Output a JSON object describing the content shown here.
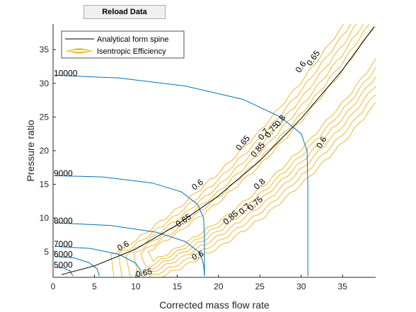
{
  "toolbar": {
    "reload_label": "Reload Data"
  },
  "chart_data": {
    "type": "line",
    "title": "",
    "xlabel": "Corrected mass flow rate",
    "ylabel": "Pressure ratio",
    "xlim": [
      0,
      39
    ],
    "ylim": [
      1.2,
      38.8
    ],
    "xticks": [
      0,
      5,
      10,
      15,
      20,
      25,
      30,
      35
    ],
    "yticks": [
      5,
      10,
      15,
      20,
      25,
      30,
      35
    ],
    "grid": false,
    "legend_position": "top-left",
    "legend": [
      {
        "name": "Analytical form spine",
        "color": "#000000"
      },
      {
        "name": "Isentropic Efficiency",
        "color": "#EDB120"
      }
    ],
    "speed_lines": [
      {
        "label": "5000",
        "color": "#0072BD",
        "points": [
          [
            0.2,
            2.7
          ],
          [
            1.2,
            2.6
          ],
          [
            2.0,
            2.2
          ],
          [
            2.4,
            1.4
          ]
        ]
      },
      {
        "label": "6000",
        "color": "#0072BD",
        "points": [
          [
            0.2,
            4.3
          ],
          [
            2.5,
            4.1
          ],
          [
            4.3,
            3.4
          ],
          [
            5.3,
            2.5
          ],
          [
            5.6,
            1.4
          ]
        ]
      },
      {
        "label": "7000",
        "color": "#0072BD",
        "points": [
          [
            0.2,
            5.8
          ],
          [
            4.5,
            5.5
          ],
          [
            8.0,
            4.6
          ],
          [
            10.0,
            3.3
          ],
          [
            10.6,
            2.2
          ],
          [
            10.7,
            1.4
          ]
        ]
      },
      {
        "label": "8000",
        "color": "#0072BD",
        "points": [
          [
            0.2,
            9.3
          ],
          [
            7.0,
            8.9
          ],
          [
            12.5,
            7.9
          ],
          [
            16.0,
            6.5
          ],
          [
            17.8,
            4.8
          ],
          [
            18.2,
            3.0
          ],
          [
            18.3,
            1.4
          ]
        ]
      },
      {
        "label": "9000",
        "color": "#0072BD",
        "points": [
          [
            0.2,
            16.3
          ],
          [
            6.0,
            16.1
          ],
          [
            12.0,
            15.2
          ],
          [
            15.5,
            13.9
          ],
          [
            17.5,
            12.0
          ],
          [
            18.2,
            10.0
          ],
          [
            18.3,
            7.0
          ],
          [
            18.3,
            1.4
          ]
        ]
      },
      {
        "label": "10000",
        "color": "#0072BD",
        "points": [
          [
            0.2,
            31.2
          ],
          [
            8.0,
            30.8
          ],
          [
            16.0,
            29.6
          ],
          [
            23.0,
            27.6
          ],
          [
            27.5,
            25.0
          ],
          [
            30.0,
            22.5
          ],
          [
            30.7,
            20.0
          ],
          [
            30.8,
            15.0
          ],
          [
            30.8,
            1.4
          ]
        ]
      }
    ],
    "spine": {
      "name": "Analytical form spine",
      "points": [
        [
          1.0,
          1.6
        ],
        [
          5.0,
          2.9
        ],
        [
          10.0,
          5.4
        ],
        [
          15.0,
          9.0
        ],
        [
          20.0,
          13.3
        ],
        [
          25.0,
          18.5
        ],
        [
          30.0,
          24.8
        ],
        [
          35.0,
          32.0
        ],
        [
          38.8,
          38.4
        ]
      ]
    },
    "efficiency_contours": {
      "name": "Isentropic Efficiency",
      "levels": [
        0.6,
        0.65,
        0.7,
        0.75,
        0.8,
        0.85
      ],
      "labels": [
        {
          "text": "0.65",
          "x": 11.0,
          "y": 1.8,
          "angle": -12
        },
        {
          "text": "0.6",
          "x": 8.5,
          "y": 5.8,
          "angle": -30
        },
        {
          "text": "0.65",
          "x": 15.8,
          "y": 9.6,
          "angle": -35
        },
        {
          "text": "0.6",
          "x": 17.5,
          "y": 4.4,
          "angle": -25
        },
        {
          "text": "0.6",
          "x": 17.5,
          "y": 14.9,
          "angle": -38
        },
        {
          "text": "0.85",
          "x": 21.5,
          "y": 10.0,
          "angle": -40
        },
        {
          "text": "0.7",
          "x": 23.2,
          "y": 11.3,
          "angle": -42
        },
        {
          "text": "0.75",
          "x": 24.5,
          "y": 12.1,
          "angle": -42
        },
        {
          "text": "0.8",
          "x": 25.0,
          "y": 15.0,
          "angle": -42
        },
        {
          "text": "0.65",
          "x": 23.0,
          "y": 21.1,
          "angle": -50
        },
        {
          "text": "0.85",
          "x": 24.8,
          "y": 20.1,
          "angle": -50
        },
        {
          "text": "0.7",
          "x": 25.5,
          "y": 22.4,
          "angle": -52
        },
        {
          "text": "0.75",
          "x": 26.5,
          "y": 23.0,
          "angle": -52
        },
        {
          "text": "0.8",
          "x": 27.5,
          "y": 24.4,
          "angle": -52
        },
        {
          "text": "0.6",
          "x": 30.0,
          "y": 32.4,
          "angle": -55
        },
        {
          "text": "0.65",
          "x": 31.5,
          "y": 33.7,
          "angle": -55
        },
        {
          "text": "0.6",
          "x": 32.5,
          "y": 21.2,
          "angle": -60
        }
      ]
    }
  }
}
